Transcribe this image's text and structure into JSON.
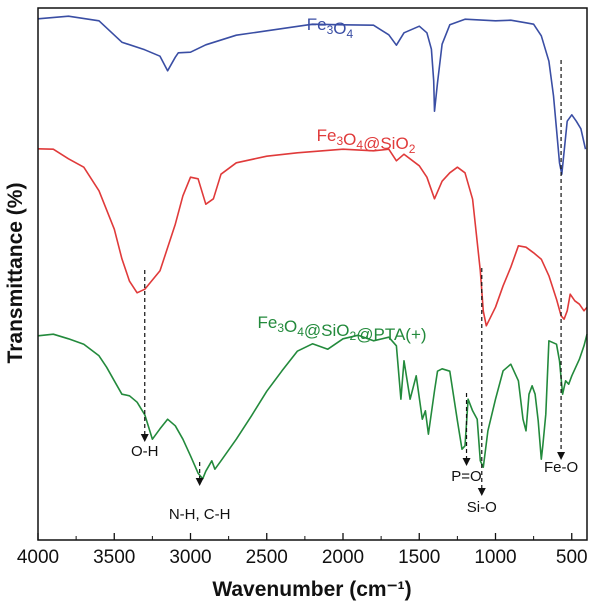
{
  "chart_data": {
    "type": "line",
    "xlabel": "Wavenumber (cm⁻¹)",
    "ylabel": "Transmittance (%)",
    "xlim": [
      4000,
      400
    ],
    "x_ticks": [
      4000,
      3500,
      3000,
      2500,
      2000,
      1500,
      1000,
      500
    ],
    "x_reversed": true,
    "y_ticks_shown": false,
    "grid": false,
    "series": [
      {
        "name": "Fe3O4",
        "name_parts": [
          [
            "Fe",
            ""
          ],
          [
            "3",
            "sub"
          ],
          [
            "O",
            ""
          ],
          [
            "4",
            "sub"
          ]
        ],
        "color": "#3a4ea4",
        "x": [
          4000,
          3800,
          3600,
          3450,
          3300,
          3200,
          3150,
          3100,
          3080,
          3000,
          2900,
          2700,
          2500,
          2200,
          2000,
          1800,
          1700,
          1650,
          1600,
          1500,
          1450,
          1420,
          1405,
          1400,
          1380,
          1350,
          1300,
          1200,
          1000,
          900,
          800,
          750,
          700,
          650,
          620,
          600,
          580,
          565,
          545,
          530,
          500,
          470,
          440,
          410
        ],
        "y": [
          18,
          17,
          20,
          43,
          49,
          57,
          70,
          58,
          52,
          53,
          44,
          36,
          30,
          25,
          24,
          26,
          34,
          46,
          32,
          27,
          32,
          50,
          80,
          112,
          82,
          45,
          24,
          20,
          20,
          21,
          22,
          25,
          35,
          62,
          95,
          130,
          162,
          175,
          143,
          122,
          114,
          122,
          128,
          150
        ]
      },
      {
        "name": "Fe3O4@SiO2",
        "name_parts": [
          [
            "Fe",
            ""
          ],
          [
            "3",
            "sub"
          ],
          [
            "O",
            ""
          ],
          [
            "4",
            "sub"
          ],
          [
            "@SiO",
            ""
          ],
          [
            "2",
            "sub"
          ]
        ],
        "color": "#e03a3a",
        "x": [
          4000,
          3900,
          3800,
          3700,
          3600,
          3500,
          3450,
          3400,
          3350,
          3300,
          3200,
          3100,
          3050,
          3000,
          2950,
          2900,
          2850,
          2800,
          2700,
          2500,
          2300,
          2000,
          1800,
          1700,
          1650,
          1600,
          1500,
          1450,
          1400,
          1350,
          1300,
          1250,
          1200,
          1150,
          1100,
          1080,
          1060,
          1000,
          950,
          900,
          850,
          800,
          750,
          700,
          650,
          600,
          570,
          550,
          530,
          510,
          480,
          450,
          420,
          400
        ],
        "y": [
          148,
          150,
          158,
          168,
          190,
          230,
          258,
          282,
          292,
          290,
          270,
          225,
          195,
          178,
          178,
          205,
          198,
          175,
          162,
          157,
          152,
          150,
          150,
          150,
          160,
          155,
          165,
          178,
          198,
          182,
          172,
          168,
          172,
          200,
          270,
          312,
          325,
          308,
          285,
          268,
          245,
          248,
          252,
          260,
          275,
          300,
          315,
          320,
          310,
          295,
          300,
          305,
          310,
          308
        ]
      },
      {
        "name": "Fe3O4@SiO2@PTA(+)",
        "name_parts": [
          [
            "Fe",
            ""
          ],
          [
            "3",
            "sub"
          ],
          [
            "O",
            ""
          ],
          [
            "4",
            "sub"
          ],
          [
            "@SiO",
            ""
          ],
          [
            "2",
            "sub"
          ],
          [
            "@PTA(+)",
            ""
          ]
        ],
        "color": "#238a3c",
        "x": [
          4000,
          3900,
          3800,
          3700,
          3600,
          3550,
          3500,
          3450,
          3400,
          3350,
          3300,
          3250,
          3200,
          3150,
          3100,
          3050,
          3000,
          2950,
          2920,
          2900,
          2860,
          2840,
          2800,
          2700,
          2600,
          2500,
          2400,
          2300,
          2200,
          2100,
          2000,
          1900,
          1800,
          1700,
          1650,
          1620,
          1600,
          1560,
          1520,
          1480,
          1460,
          1440,
          1400,
          1380,
          1350,
          1300,
          1250,
          1220,
          1200,
          1180,
          1150,
          1120,
          1100,
          1080,
          1050,
          1000,
          950,
          900,
          850,
          820,
          800,
          780,
          760,
          740,
          720,
          700,
          690,
          670,
          650,
          600,
          580,
          560,
          540,
          520,
          500,
          450,
          420,
          400
        ],
        "y": [
          335,
          335,
          338,
          345,
          355,
          368,
          380,
          395,
          395,
          403,
          414,
          440,
          428,
          420,
          425,
          440,
          455,
          474,
          478,
          472,
          460,
          470,
          460,
          440,
          415,
          392,
          370,
          352,
          343,
          350,
          338,
          336,
          340,
          338,
          345,
          400,
          360,
          400,
          375,
          420,
          410,
          435,
          390,
          372,
          368,
          372,
          420,
          450,
          445,
          400,
          410,
          420,
          460,
          468,
          430,
          400,
          370,
          365,
          380,
          420,
          430,
          395,
          385,
          395,
          420,
          460,
          445,
          415,
          340,
          345,
          360,
          395,
          380,
          385,
          375,
          360,
          345,
          335
        ]
      }
    ],
    "annotations": [
      {
        "text": "O-H",
        "x": 3300
      },
      {
        "text": "N-H, C-H",
        "x": 2940
      },
      {
        "text": "P=O",
        "x": 1190
      },
      {
        "text": "Si-O",
        "x": 1090
      },
      {
        "text": "Fe-O",
        "x": 570
      }
    ]
  }
}
